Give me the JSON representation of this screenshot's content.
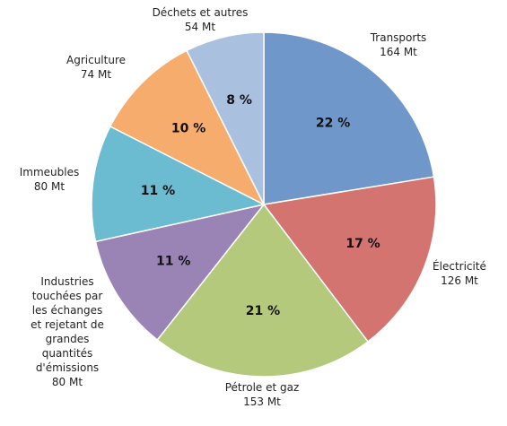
{
  "chart_data": {
    "type": "pie",
    "categories": [
      "Transports",
      "Électricité",
      "Pétrole et gaz",
      "Industries touchées par les échanges et rejetant de grandes quantités d'émissions",
      "Immeubles",
      "Agriculture",
      "Déchets et autres"
    ],
    "values": [
      164,
      126,
      153,
      80,
      80,
      74,
      54
    ],
    "value_labels": [
      "164 Mt",
      "126 Mt",
      "153 Mt",
      "80 Mt",
      "80 Mt",
      "74 Mt",
      "54 Mt"
    ],
    "percent_labels": [
      "22 %",
      "17 %",
      "21 %",
      "11 %",
      "11 %",
      "10 %",
      "8 %"
    ],
    "colors": [
      "#7097c9",
      "#d37471",
      "#b4c97c",
      "#9a84b6",
      "#6bbcd0",
      "#f6ac6d",
      "#a9c0df"
    ]
  }
}
